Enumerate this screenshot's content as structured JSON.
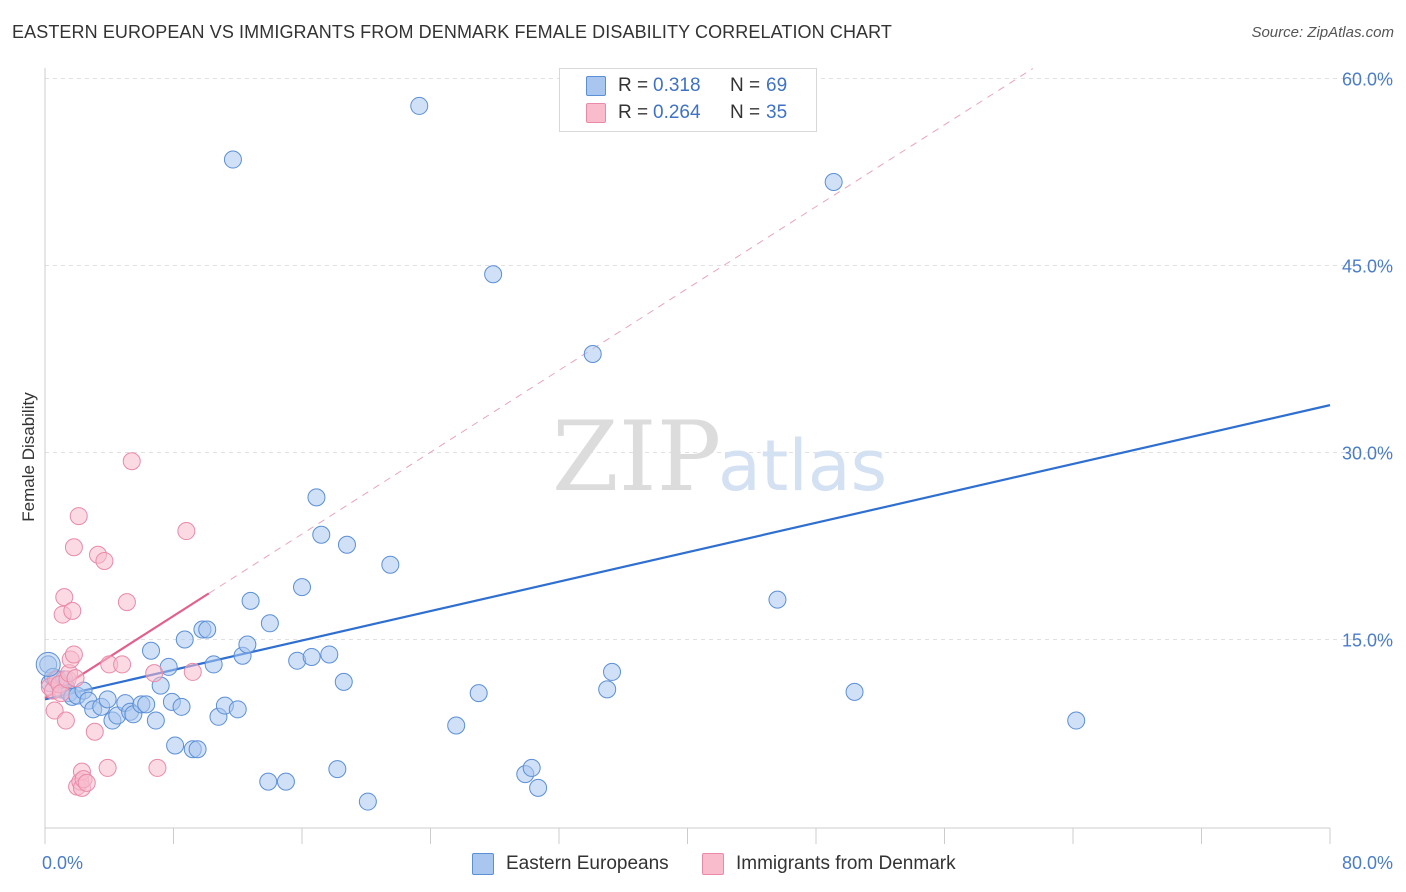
{
  "header": {
    "title": "EASTERN EUROPEAN VS IMMIGRANTS FROM DENMARK FEMALE DISABILITY CORRELATION CHART",
    "source": "Source: ZipAtlas.com"
  },
  "legend": {
    "rows": [
      {
        "r_label": "R =",
        "r_value": "0.318",
        "n_label": "N =",
        "n_value": "69",
        "fill": "#a9c6ee",
        "stroke": "#5b8fd6"
      },
      {
        "r_label": "R =",
        "r_value": "0.264",
        "n_label": "N =",
        "n_value": "35",
        "fill": "#f8bccd",
        "stroke": "#e98aa8"
      }
    ]
  },
  "watermark": {
    "zip": "ZIP",
    "atlas": "atlas"
  },
  "chart_data": {
    "type": "scatter",
    "title": "EASTERN EUROPEAN VS IMMIGRANTS FROM DENMARK FEMALE DISABILITY CORRELATION CHART",
    "xlabel": "",
    "ylabel": "Female Disability",
    "xlim": [
      0,
      80
    ],
    "ylim": [
      0,
      61.5
    ],
    "x_tick_labels": [
      {
        "value": 0,
        "label": "0.0%"
      },
      {
        "value": 80,
        "label": "80.0%"
      }
    ],
    "y_tick_labels": [
      {
        "value": 15,
        "label": "15.0%"
      },
      {
        "value": 30,
        "label": "30.0%"
      },
      {
        "value": 45,
        "label": "45.0%"
      },
      {
        "value": 60,
        "label": "60.0%"
      }
    ],
    "grid": true,
    "legend_position": "top-center",
    "series": [
      {
        "name": "Eastern Europeans",
        "color": "#5b8fd6",
        "fill": "#a9c6ee",
        "trend": {
          "x": [
            0,
            80
          ],
          "y": [
            10.2,
            33.8
          ],
          "style": "solid",
          "color": "#2f6fd0"
        },
        "points": [
          [
            0.2,
            13.0
          ],
          [
            0.3,
            11.5
          ],
          [
            0.5,
            12.0
          ],
          [
            0.8,
            11.8
          ],
          [
            1.0,
            11.0
          ],
          [
            1.2,
            11.8
          ],
          [
            1.3,
            11.2
          ],
          [
            1.5,
            10.7
          ],
          [
            1.7,
            10.4
          ],
          [
            2.0,
            10.5
          ],
          [
            2.4,
            10.9
          ],
          [
            2.7,
            10.1
          ],
          [
            3.0,
            9.4
          ],
          [
            3.5,
            9.6
          ],
          [
            3.9,
            10.2
          ],
          [
            4.2,
            8.5
          ],
          [
            4.5,
            8.9
          ],
          [
            5.0,
            9.9
          ],
          [
            5.3,
            9.2
          ],
          [
            5.5,
            9.0
          ],
          [
            6.0,
            9.8
          ],
          [
            6.3,
            9.8
          ],
          [
            6.6,
            14.1
          ],
          [
            6.9,
            8.5
          ],
          [
            7.2,
            11.3
          ],
          [
            7.7,
            12.8
          ],
          [
            7.9,
            10.0
          ],
          [
            8.1,
            6.5
          ],
          [
            8.5,
            9.6
          ],
          [
            8.7,
            15.0
          ],
          [
            9.2,
            6.2
          ],
          [
            9.5,
            6.2
          ],
          [
            9.8,
            15.8
          ],
          [
            10.1,
            15.8
          ],
          [
            10.5,
            13.0
          ],
          [
            10.8,
            8.8
          ],
          [
            11.2,
            9.7
          ],
          [
            11.7,
            53.5
          ],
          [
            12.0,
            9.4
          ],
          [
            12.3,
            13.7
          ],
          [
            12.6,
            14.6
          ],
          [
            12.8,
            18.1
          ],
          [
            13.9,
            3.6
          ],
          [
            14.0,
            16.3
          ],
          [
            15.0,
            3.6
          ],
          [
            15.7,
            13.3
          ],
          [
            16.0,
            19.2
          ],
          [
            16.6,
            13.6
          ],
          [
            16.9,
            26.4
          ],
          [
            17.2,
            23.4
          ],
          [
            17.7,
            13.8
          ],
          [
            18.2,
            4.6
          ],
          [
            18.6,
            11.6
          ],
          [
            18.8,
            22.6
          ],
          [
            20.1,
            2.0
          ],
          [
            21.5,
            21.0
          ],
          [
            23.3,
            57.8
          ],
          [
            25.6,
            8.1
          ],
          [
            27.0,
            10.7
          ],
          [
            27.9,
            44.3
          ],
          [
            29.9,
            4.2
          ],
          [
            30.3,
            4.7
          ],
          [
            30.7,
            3.1
          ],
          [
            34.1,
            37.9
          ],
          [
            35.0,
            11.0
          ],
          [
            35.3,
            12.4
          ],
          [
            45.6,
            18.2
          ],
          [
            49.1,
            51.7
          ],
          [
            50.4,
            10.8
          ],
          [
            64.2,
            8.5
          ]
        ]
      },
      {
        "name": "Immigrants from Denmark",
        "color": "#e98aa8",
        "fill": "#f8bccd",
        "trend": {
          "x": [
            0,
            10.2
          ],
          "y": [
            10.3,
            18.7
          ],
          "style": "solid",
          "dashed_extension": {
            "x": [
              10.2,
              61.5
            ],
            "y": [
              18.7,
              60.8
            ]
          },
          "color": "#e25f8e"
        },
        "points": [
          [
            0.3,
            11.2
          ],
          [
            0.5,
            10.9
          ],
          [
            0.6,
            9.3
          ],
          [
            0.7,
            11.8
          ],
          [
            0.9,
            11.4
          ],
          [
            1.0,
            10.7
          ],
          [
            1.1,
            17.0
          ],
          [
            1.2,
            18.4
          ],
          [
            1.3,
            8.5
          ],
          [
            1.4,
            11.8
          ],
          [
            1.5,
            12.3
          ],
          [
            1.6,
            13.4
          ],
          [
            1.7,
            17.3
          ],
          [
            1.8,
            13.8
          ],
          [
            1.8,
            22.4
          ],
          [
            1.9,
            11.9
          ],
          [
            2.0,
            3.2
          ],
          [
            2.1,
            24.9
          ],
          [
            2.2,
            3.6
          ],
          [
            2.3,
            3.1
          ],
          [
            2.3,
            4.4
          ],
          [
            2.4,
            3.8
          ],
          [
            2.6,
            3.5
          ],
          [
            3.1,
            7.6
          ],
          [
            3.3,
            21.8
          ],
          [
            3.7,
            21.3
          ],
          [
            3.9,
            4.7
          ],
          [
            4.0,
            13.0
          ],
          [
            4.8,
            13.0
          ],
          [
            5.1,
            18.0
          ],
          [
            5.4,
            29.3
          ],
          [
            6.8,
            12.3
          ],
          [
            7.0,
            4.7
          ],
          [
            8.8,
            23.7
          ],
          [
            9.2,
            12.4
          ]
        ]
      }
    ]
  }
}
